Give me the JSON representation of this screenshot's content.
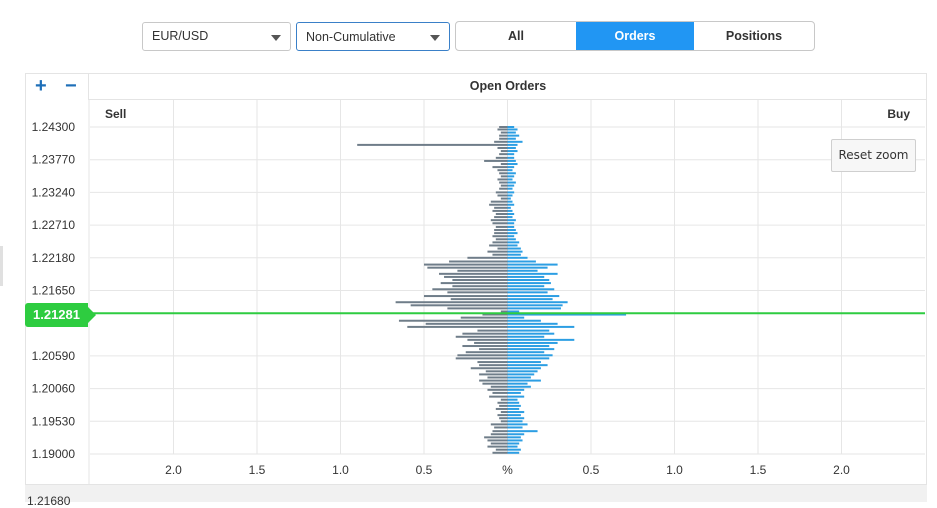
{
  "controls": {
    "pair": "EUR/USD",
    "mode": "Non-Cumulative",
    "tabs": [
      {
        "label": "All",
        "active": false
      },
      {
        "label": "Orders",
        "active": true
      },
      {
        "label": "Positions",
        "active": false
      }
    ]
  },
  "panel": {
    "zoom_in": "+",
    "zoom_out": "−",
    "reset_zoom": "Reset zoom",
    "footer_price": "1.21680"
  },
  "colors": {
    "sell": "#6f7d89",
    "buy": "#2c9ee3",
    "current": "#2ecc40",
    "accent": "#2196f3"
  },
  "chart_data": {
    "type": "bar",
    "orientation": "horizontal",
    "title": "Open Orders",
    "left_label": "Sell",
    "right_label": "Buy",
    "xlabel": "%",
    "x_ticks": [
      "2.0",
      "1.5",
      "1.0",
      "0.5",
      "%",
      "0.5",
      "1.0",
      "1.5",
      "2.0"
    ],
    "xlim": [
      -2.5,
      2.5
    ],
    "y_ticks": [
      "1.24300",
      "1.23770",
      "1.23240",
      "1.22710",
      "1.22180",
      "1.21650",
      "1.20590",
      "1.20060",
      "1.19530",
      "1.19000"
    ],
    "ylim": [
      1.19,
      1.243
    ],
    "current_price": "1.21281",
    "series": [
      {
        "name": "Sell",
        "prices": [
          1.243,
          1.2426,
          1.2421,
          1.2416,
          1.2411,
          1.2406,
          1.2401,
          1.2396,
          1.2391,
          1.2386,
          1.238,
          1.2375,
          1.237,
          1.2365,
          1.236,
          1.2355,
          1.235,
          1.2345,
          1.234,
          1.2335,
          1.233,
          1.2324,
          1.2319,
          1.2314,
          1.2309,
          1.2304,
          1.2299,
          1.2294,
          1.2289,
          1.2284,
          1.2279,
          1.2274,
          1.2268,
          1.2263,
          1.2258,
          1.2253,
          1.2248,
          1.2243,
          1.2238,
          1.2233,
          1.2228,
          1.2223,
          1.2218,
          1.2212,
          1.2207,
          1.2202,
          1.2197,
          1.2192,
          1.2187,
          1.2182,
          1.2177,
          1.2172,
          1.2167,
          1.2162,
          1.2156,
          1.2151,
          1.2146,
          1.2141,
          1.2136,
          1.2131,
          1.2126,
          1.2121,
          1.2116,
          1.2111,
          1.2106,
          1.21,
          1.2095,
          1.209,
          1.2085,
          1.208,
          1.2075,
          1.207,
          1.2065,
          1.206,
          1.2055,
          1.2049,
          1.2044,
          1.2039,
          1.2034,
          1.2029,
          1.2024,
          1.2019,
          1.2014,
          1.2009,
          1.2004,
          1.1999,
          1.1993,
          1.1988,
          1.1983,
          1.1978,
          1.1973,
          1.1968,
          1.1963,
          1.1958,
          1.1953,
          1.1948,
          1.1943,
          1.1937,
          1.1932,
          1.1927,
          1.1922,
          1.1917,
          1.1912,
          1.1907,
          1.1902
        ],
        "values": [
          0.05,
          0.06,
          0.04,
          0.05,
          0.05,
          0.08,
          0.9,
          0.06,
          0.04,
          0.05,
          0.07,
          0.14,
          0.04,
          0.09,
          0.06,
          0.05,
          0.04,
          0.06,
          0.05,
          0.04,
          0.05,
          0.07,
          0.06,
          0.04,
          0.1,
          0.11,
          0.08,
          0.09,
          0.07,
          0.08,
          0.1,
          0.09,
          0.07,
          0.08,
          0.08,
          0.09,
          0.07,
          0.09,
          0.11,
          0.06,
          0.12,
          0.09,
          0.24,
          0.35,
          0.5,
          0.48,
          0.3,
          0.41,
          0.38,
          0.33,
          0.4,
          0.33,
          0.45,
          0.36,
          0.5,
          0.34,
          0.67,
          0.58,
          0.36,
          0.04,
          0.15,
          0.28,
          0.65,
          0.49,
          0.6,
          0.18,
          0.27,
          0.31,
          0.24,
          0.2,
          0.27,
          0.17,
          0.25,
          0.3,
          0.31,
          0.18,
          0.17,
          0.22,
          0.13,
          0.17,
          0.12,
          0.17,
          0.15,
          0.1,
          0.12,
          0.09,
          0.11,
          0.04,
          0.06,
          0.05,
          0.07,
          0.04,
          0.06,
          0.05,
          0.04,
          0.1,
          0.08,
          0.09,
          0.1,
          0.14,
          0.12,
          0.1,
          0.12,
          0.07,
          0.09
        ]
      },
      {
        "name": "Buy",
        "prices": [
          1.243,
          1.2426,
          1.2421,
          1.2416,
          1.2411,
          1.2406,
          1.2401,
          1.2396,
          1.2391,
          1.2386,
          1.238,
          1.2375,
          1.237,
          1.2365,
          1.236,
          1.2355,
          1.235,
          1.2345,
          1.234,
          1.2335,
          1.233,
          1.2324,
          1.2319,
          1.2314,
          1.2309,
          1.2304,
          1.2299,
          1.2294,
          1.2289,
          1.2284,
          1.2279,
          1.2274,
          1.2268,
          1.2263,
          1.2258,
          1.2253,
          1.2248,
          1.2243,
          1.2238,
          1.2233,
          1.2228,
          1.2223,
          1.2218,
          1.2212,
          1.2207,
          1.2202,
          1.2197,
          1.2192,
          1.2187,
          1.2182,
          1.2177,
          1.2172,
          1.2167,
          1.2162,
          1.2156,
          1.2151,
          1.2146,
          1.2141,
          1.2136,
          1.2131,
          1.2126,
          1.2121,
          1.2116,
          1.2111,
          1.2106,
          1.21,
          1.2095,
          1.209,
          1.2085,
          1.208,
          1.2075,
          1.207,
          1.2065,
          1.206,
          1.2055,
          1.2049,
          1.2044,
          1.2039,
          1.2034,
          1.2029,
          1.2024,
          1.2019,
          1.2014,
          1.2009,
          1.2004,
          1.1999,
          1.1993,
          1.1988,
          1.1983,
          1.1978,
          1.1973,
          1.1968,
          1.1963,
          1.1958,
          1.1953,
          1.1948,
          1.1943,
          1.1937,
          1.1932,
          1.1927,
          1.1922,
          1.1917,
          1.1912,
          1.1907,
          1.1902
        ],
        "values": [
          0.04,
          0.06,
          0.05,
          0.07,
          0.05,
          0.09,
          0.06,
          0.05,
          0.06,
          0.04,
          0.04,
          0.05,
          0.06,
          0.04,
          0.03,
          0.05,
          0.04,
          0.03,
          0.05,
          0.04,
          0.03,
          0.04,
          0.03,
          0.02,
          0.03,
          0.04,
          0.02,
          0.03,
          0.04,
          0.03,
          0.05,
          0.04,
          0.04,
          0.05,
          0.06,
          0.04,
          0.05,
          0.07,
          0.06,
          0.08,
          0.09,
          0.08,
          0.12,
          0.17,
          0.3,
          0.24,
          0.18,
          0.3,
          0.22,
          0.25,
          0.26,
          0.22,
          0.28,
          0.24,
          0.31,
          0.27,
          0.36,
          0.33,
          0.32,
          0.07,
          0.71,
          0.1,
          0.2,
          0.3,
          0.4,
          0.25,
          0.28,
          0.22,
          0.4,
          0.3,
          0.25,
          0.28,
          0.22,
          0.27,
          0.25,
          0.2,
          0.24,
          0.2,
          0.18,
          0.16,
          0.14,
          0.2,
          0.12,
          0.14,
          0.1,
          0.08,
          0.1,
          0.06,
          0.07,
          0.08,
          0.07,
          0.1,
          0.08,
          0.1,
          0.09,
          0.12,
          0.09,
          0.18,
          0.1,
          0.08,
          0.09,
          0.07,
          0.06,
          0.08,
          0.07
        ]
      }
    ]
  }
}
